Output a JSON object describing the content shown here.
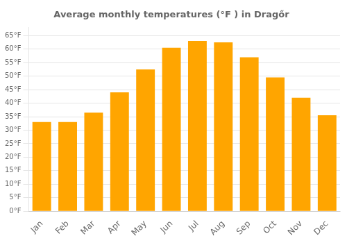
{
  "chart_data": {
    "type": "bar",
    "title": "Average monthly temperatures (°F ) in Dragőr",
    "categories": [
      "Jan",
      "Feb",
      "Mar",
      "Apr",
      "May",
      "Jun",
      "Jul",
      "Aug",
      "Sep",
      "Oct",
      "Nov",
      "Dec"
    ],
    "values": [
      33,
      33,
      36.5,
      44,
      52.5,
      60.5,
      63,
      62.5,
      57,
      49.5,
      42,
      35.5
    ],
    "color": "#FFA500",
    "ylim": [
      0,
      68
    ],
    "yticks": [
      {
        "value": 0,
        "label": "0°F"
      },
      {
        "value": 5,
        "label": "5°F"
      },
      {
        "value": 10,
        "label": "10°F"
      },
      {
        "value": 15,
        "label": "15°F"
      },
      {
        "value": 20,
        "label": "20°F"
      },
      {
        "value": 25,
        "label": "25°F"
      },
      {
        "value": 30,
        "label": "30°F"
      },
      {
        "value": 35,
        "label": "35°F"
      },
      {
        "value": 40,
        "label": "40°F"
      },
      {
        "value": 45,
        "label": "45°F"
      },
      {
        "value": 50,
        "label": "50°F"
      },
      {
        "value": 55,
        "label": "55°F"
      },
      {
        "value": 60,
        "label": "60°F"
      },
      {
        "value": 65,
        "label": "65°F"
      }
    ],
    "grid": true
  }
}
